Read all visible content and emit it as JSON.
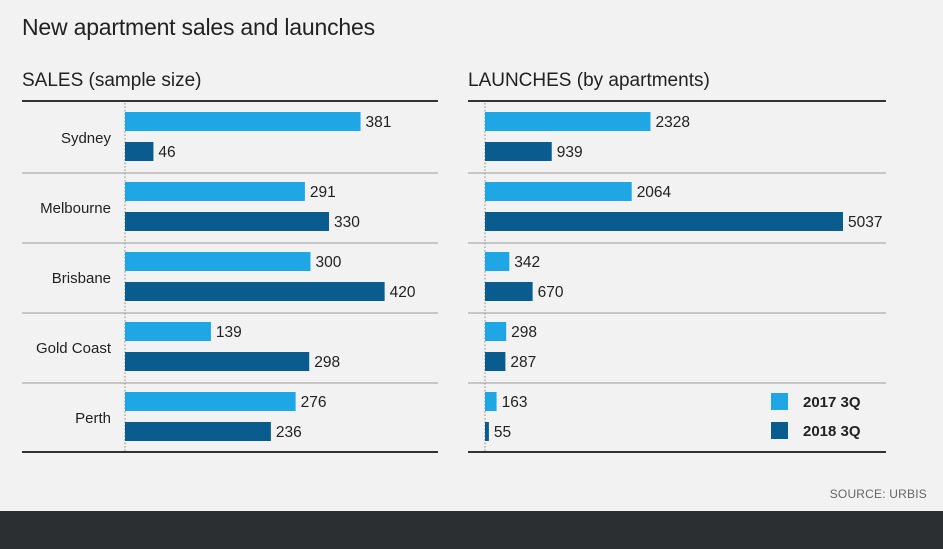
{
  "title": "New apartment sales and launches",
  "source": "SOURCE: URBIS",
  "colors": {
    "s2017": "#1ea7e4",
    "s2018": "#0b5c8e",
    "rule": "#333333",
    "sep": "#9a9a9a"
  },
  "legend": [
    {
      "label": "2017 3Q",
      "color": "#1ea7e4"
    },
    {
      "label": "2018 3Q",
      "color": "#0b5c8e"
    }
  ],
  "chart_data": [
    {
      "type": "bar",
      "orientation": "horizontal",
      "title": "SALES (sample size)",
      "categories": [
        "Sydney",
        "Melbourne",
        "Brisbane",
        "Gold Coast",
        "Perth"
      ],
      "series": [
        {
          "name": "2017 3Q",
          "values": [
            381,
            291,
            300,
            139,
            276
          ]
        },
        {
          "name": "2018 3Q",
          "values": [
            46,
            330,
            420,
            298,
            236
          ]
        }
      ],
      "xlim": [
        0,
        440
      ]
    },
    {
      "type": "bar",
      "orientation": "horizontal",
      "title": "LAUNCHES (by apartments)",
      "categories": [
        "Sydney",
        "Melbourne",
        "Brisbane",
        "Gold Coast",
        "Perth"
      ],
      "series": [
        {
          "name": "2017 3Q",
          "values": [
            2328,
            2064,
            342,
            298,
            163
          ]
        },
        {
          "name": "2018 3Q",
          "values": [
            939,
            5037,
            670,
            287,
            55
          ]
        }
      ],
      "xlim": [
        0,
        5037
      ]
    }
  ]
}
